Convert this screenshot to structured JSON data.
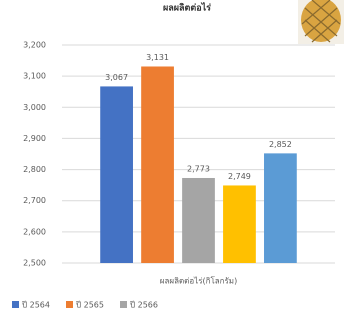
{
  "chart_data": {
    "type": "bar",
    "title": "ผลผลิตต่อไร่",
    "categories": [
      "ผลผลิตต่อไร่(กิโลกรัม)"
    ],
    "series": [
      {
        "name": "ปี 2564",
        "color": "#4472c4",
        "values": [
          3067
        ],
        "value_labels": [
          "3,067"
        ]
      },
      {
        "name": "ปี 2565",
        "color": "#ed7d31",
        "values": [
          3131
        ],
        "value_labels": [
          "3,131"
        ]
      },
      {
        "name": "ปี 2566",
        "color": "#a5a5a5",
        "values": [
          2773
        ],
        "value_labels": [
          "2,773"
        ]
      },
      {
        "color": "#ffc000",
        "values": [
          2749
        ],
        "value_labels": [
          "2,749"
        ]
      },
      {
        "color": "#5b9bd5",
        "values": [
          2852
        ],
        "value_labels": [
          "2,852"
        ]
      }
    ],
    "ylim": [
      2500,
      3200
    ],
    "yticks": [
      {
        "value": 2500,
        "label": "2,500"
      },
      {
        "value": 2600,
        "label": "2,600"
      },
      {
        "value": 2700,
        "label": "2,700"
      },
      {
        "value": 2800,
        "label": "2,800"
      },
      {
        "value": 2900,
        "label": "2,900"
      },
      {
        "value": 3000,
        "label": "3,000"
      },
      {
        "value": 3100,
        "label": "3,100"
      },
      {
        "value": 3200,
        "label": "3,200"
      }
    ],
    "grid": true
  }
}
